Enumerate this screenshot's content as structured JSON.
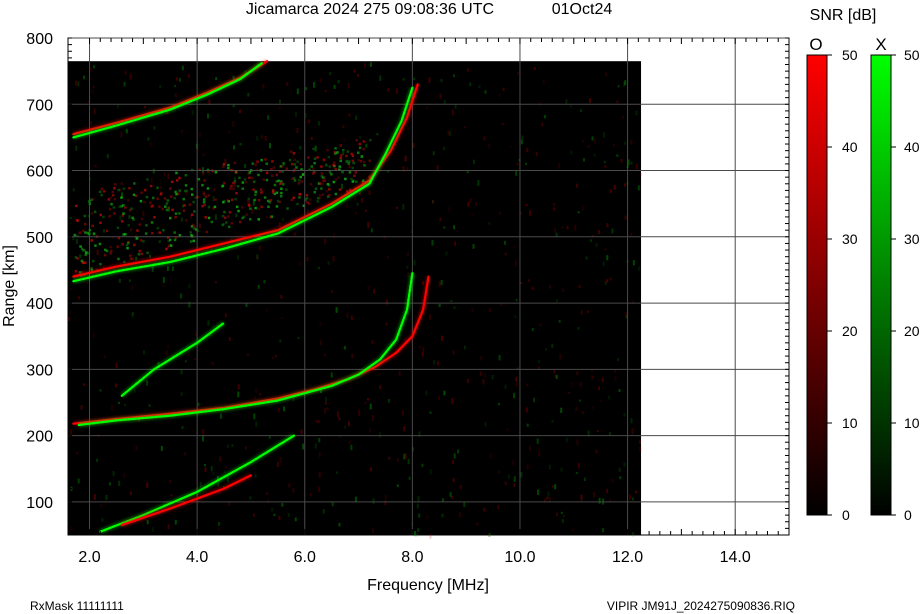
{
  "header": {
    "title": "Jicamarca 2024 275 09:08:36 UTC",
    "date": "01Oct24"
  },
  "footer": {
    "rxmask": "RxMask 11111111",
    "file": "VIPIR  JM91J_2024275090836.RIQ"
  },
  "colorbar": {
    "title": "SNR [dB]",
    "o_label": "O",
    "x_label": "X",
    "o_color": "#ff0000",
    "x_color": "#00ff00",
    "ticks": [
      "0",
      "10",
      "20",
      "30",
      "40",
      "50"
    ]
  },
  "chart_data": {
    "type": "heatmap",
    "title": "Jicamarca 2024 275 09:08:36 UTC",
    "xlabel": "Frequency [MHz]",
    "ylabel": "Range [km]",
    "xlim": [
      1.6,
      15.0
    ],
    "ylim": [
      50,
      800
    ],
    "xticks": [
      "2.0",
      "4.0",
      "6.0",
      "8.0",
      "10.0",
      "12.0",
      "14.0"
    ],
    "yticks": [
      "100",
      "200",
      "300",
      "400",
      "500",
      "600",
      "700",
      "800"
    ],
    "data_coverage": {
      "freq_max": 12.25,
      "range_max": 765
    },
    "grid": true,
    "series": [
      {
        "name": "O",
        "color": "#ff0000",
        "points": [
          [
            1.7,
            218
          ],
          [
            2.5,
            225
          ],
          [
            3.5,
            233
          ],
          [
            4.5,
            242
          ],
          [
            5.5,
            256
          ],
          [
            6.2,
            270
          ],
          [
            6.8,
            285
          ],
          [
            7.3,
            303
          ],
          [
            7.7,
            325
          ],
          [
            8.0,
            350
          ],
          [
            8.2,
            390
          ],
          [
            8.3,
            440
          ]
        ]
      },
      {
        "name": "X",
        "color": "#00ff00",
        "points": [
          [
            1.8,
            216
          ],
          [
            2.5,
            223
          ],
          [
            3.5,
            230
          ],
          [
            4.5,
            240
          ],
          [
            5.5,
            253
          ],
          [
            6.5,
            275
          ],
          [
            7.0,
            292
          ],
          [
            7.4,
            315
          ],
          [
            7.7,
            345
          ],
          [
            7.9,
            390
          ],
          [
            8.0,
            445
          ]
        ]
      },
      {
        "name": "O",
        "color": "#ff0000",
        "points": [
          [
            1.7,
            440
          ],
          [
            2.5,
            455
          ],
          [
            3.5,
            470
          ],
          [
            4.5,
            490
          ],
          [
            5.5,
            510
          ],
          [
            6.5,
            550
          ],
          [
            7.2,
            585
          ],
          [
            7.6,
            630
          ],
          [
            7.9,
            680
          ],
          [
            8.1,
            730
          ]
        ]
      },
      {
        "name": "X",
        "color": "#00ff00",
        "points": [
          [
            1.7,
            433
          ],
          [
            2.5,
            448
          ],
          [
            3.5,
            462
          ],
          [
            4.5,
            482
          ],
          [
            5.5,
            505
          ],
          [
            6.5,
            545
          ],
          [
            7.2,
            580
          ],
          [
            7.5,
            625
          ],
          [
            7.8,
            675
          ],
          [
            8.0,
            725
          ]
        ]
      },
      {
        "name": "O",
        "color": "#ff0000",
        "points": [
          [
            1.7,
            655
          ],
          [
            2.5,
            672
          ],
          [
            3.5,
            695
          ],
          [
            4.2,
            718
          ],
          [
            4.8,
            740
          ],
          [
            5.3,
            765
          ]
        ]
      },
      {
        "name": "X",
        "color": "#00ff00",
        "points": [
          [
            1.7,
            650
          ],
          [
            2.5,
            668
          ],
          [
            3.5,
            692
          ],
          [
            4.2,
            715
          ],
          [
            4.8,
            738
          ],
          [
            5.2,
            762
          ]
        ]
      },
      {
        "name": "X",
        "color": "#00ff00",
        "points": [
          [
            2.6,
            260
          ],
          [
            3.2,
            300
          ],
          [
            4.0,
            340
          ],
          [
            4.5,
            370
          ]
        ]
      },
      {
        "name": "X",
        "color": "#00ff00",
        "points": [
          [
            2.2,
            55
          ],
          [
            3.0,
            80
          ],
          [
            4.0,
            115
          ],
          [
            5.0,
            160
          ],
          [
            5.8,
            200
          ]
        ]
      },
      {
        "name": "O",
        "color": "#ff0000",
        "points": [
          [
            2.6,
            65
          ],
          [
            3.5,
            90
          ],
          [
            4.5,
            120
          ],
          [
            5.0,
            140
          ]
        ]
      }
    ]
  }
}
